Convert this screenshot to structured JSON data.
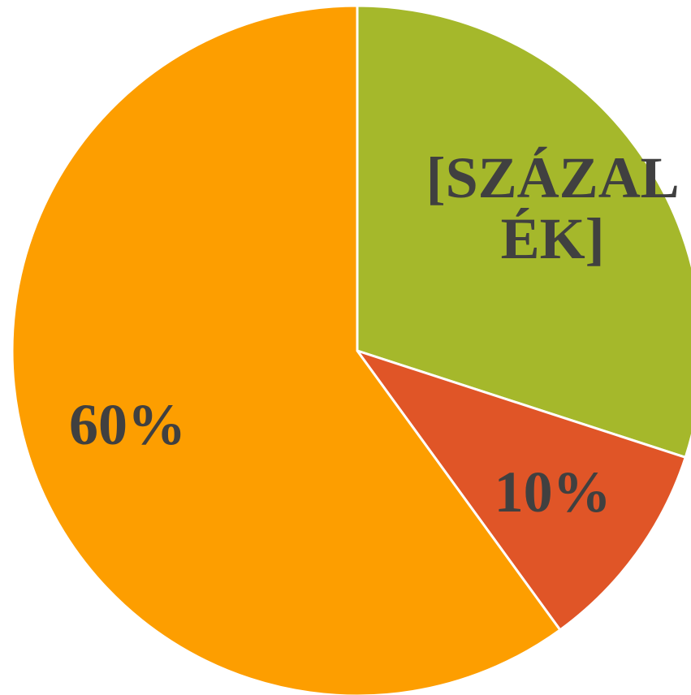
{
  "chart_data": {
    "type": "pie",
    "categories": [
      null,
      null,
      null
    ],
    "values": [
      30,
      10,
      60
    ],
    "value_labels": [
      "[SZÁZALÉK]",
      "10%",
      "60%"
    ],
    "colors": [
      "#a5b82b",
      "#e05527",
      "#fd9e00"
    ]
  }
}
